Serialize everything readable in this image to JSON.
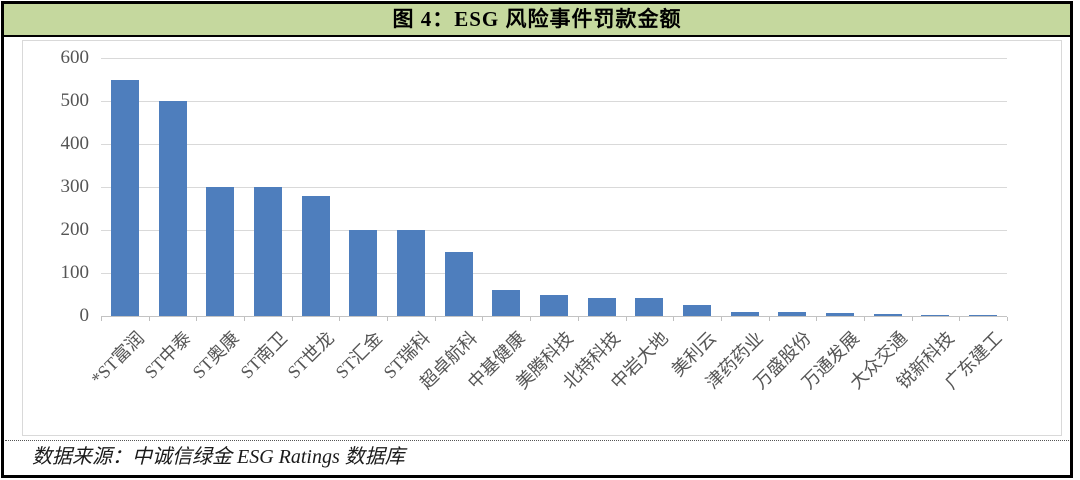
{
  "figure": {
    "title": "图 4：ESG 风险事件罚款金额",
    "source": "数据来源：中诚信绿金 ESG Ratings 数据库"
  },
  "colors": {
    "header_bg": "#c5d89e",
    "bar": "#4e7ebd",
    "gridline": "#d9d9d9",
    "axis_line": "#c3c3c3",
    "tick_mark": "#bfbfbf",
    "axis_text": "#555555",
    "chart_border": "#d9d9d9",
    "outer_border": "#000000"
  },
  "chart_data": {
    "type": "bar",
    "title": "图 4：ESG 风险事件罚款金额",
    "categories": [
      "*ST富润",
      "ST中泰",
      "ST奥康",
      "ST南卫",
      "ST世龙",
      "ST汇金",
      "ST瑞科",
      "超卓航科",
      "中基健康",
      "美腾科技",
      "北特科技",
      "中岩大地",
      "美利云",
      "津药药业",
      "万盛股份",
      "万通发展",
      "大众交通",
      "锐新科技",
      "广东建工"
    ],
    "values": [
      550,
      500,
      300,
      300,
      280,
      200,
      200,
      150,
      60,
      48,
      43,
      43,
      25,
      10,
      10,
      8,
      5,
      3,
      3
    ],
    "xlabel": "",
    "ylabel": "",
    "ylim": [
      0,
      600
    ],
    "yticks": [
      0,
      100,
      200,
      300,
      400,
      500,
      600
    ],
    "grid": true,
    "legend": false,
    "bar_color": "#4e7ebd"
  }
}
